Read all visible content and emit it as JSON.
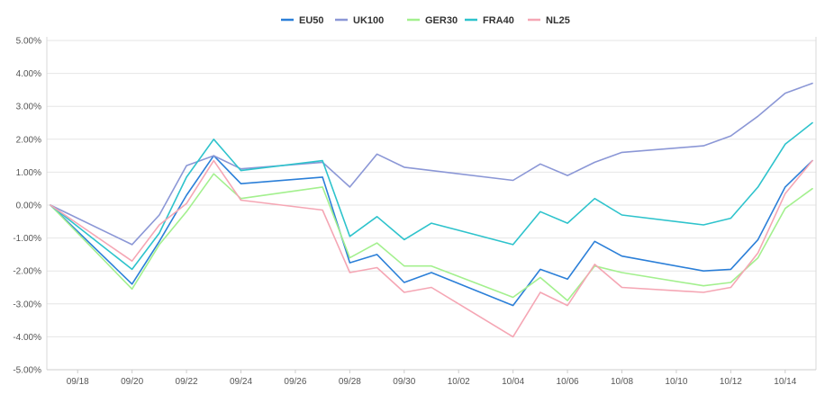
{
  "chart_data": {
    "type": "line",
    "title": "",
    "xlabel": "",
    "ylabel": "",
    "ylim": [
      -5,
      5
    ],
    "grid": true,
    "legend_position": "top-center",
    "x_ticks": [
      "09/18",
      "09/20",
      "09/22",
      "09/24",
      "09/26",
      "09/28",
      "09/30",
      "10/02",
      "10/04",
      "10/06",
      "10/08",
      "10/10",
      "10/12",
      "10/14"
    ],
    "y_ticks": [
      "5.00%",
      "4.00%",
      "3.00%",
      "2.00%",
      "1.00%",
      "0.00%",
      "-1.00%",
      "-2.00%",
      "-3.00%",
      "-4.00%",
      "-5.00%"
    ],
    "x_min": "09/17",
    "x_max": "10/15",
    "x": [
      "09/17",
      "09/20",
      "09/21",
      "09/22",
      "09/23",
      "09/24",
      "09/27",
      "09/28",
      "09/29",
      "09/30",
      "10/01",
      "10/04",
      "10/05",
      "10/06",
      "10/07",
      "10/08",
      "10/11",
      "10/12",
      "10/13",
      "10/14",
      "10/15"
    ],
    "series": [
      {
        "name": "EU50",
        "color": "#2b7fd8",
        "values": [
          0.0,
          -2.4,
          -1.1,
          0.3,
          1.5,
          0.65,
          0.85,
          -1.75,
          -1.5,
          -2.35,
          -2.05,
          -3.05,
          -1.95,
          -2.25,
          -1.1,
          -1.55,
          -2.0,
          -1.95,
          -1.05,
          0.55,
          1.35
        ]
      },
      {
        "name": "UK100",
        "color": "#8b97d6",
        "values": [
          0.0,
          -1.2,
          -0.3,
          1.2,
          1.5,
          1.1,
          1.3,
          0.55,
          1.55,
          1.15,
          1.05,
          0.75,
          1.25,
          0.9,
          1.3,
          1.6,
          1.8,
          2.1,
          2.7,
          3.4,
          3.7
        ]
      },
      {
        "name": "GER30",
        "color": "#a3f08e",
        "values": [
          0.0,
          -2.55,
          -1.2,
          -0.2,
          0.95,
          0.2,
          0.55,
          -1.6,
          -1.15,
          -1.85,
          -1.85,
          -2.8,
          -2.2,
          -2.9,
          -1.85,
          -2.05,
          -2.45,
          -2.35,
          -1.6,
          -0.1,
          0.5
        ]
      },
      {
        "name": "FRA40",
        "color": "#2ec3cc",
        "values": [
          0.0,
          -1.95,
          -0.85,
          0.85,
          2.0,
          1.05,
          1.35,
          -0.95,
          -0.35,
          -1.05,
          -0.55,
          -1.2,
          -0.2,
          -0.55,
          0.2,
          -0.3,
          -0.6,
          -0.4,
          0.55,
          1.85,
          2.5
        ]
      },
      {
        "name": "NL25",
        "color": "#f5a6b4",
        "values": [
          0.0,
          -1.7,
          -0.6,
          0.05,
          1.35,
          0.15,
          -0.15,
          -2.05,
          -1.9,
          -2.65,
          -2.5,
          -4.0,
          -2.65,
          -3.05,
          -1.8,
          -2.5,
          -2.65,
          -2.5,
          -1.45,
          0.35,
          1.35
        ]
      }
    ]
  }
}
